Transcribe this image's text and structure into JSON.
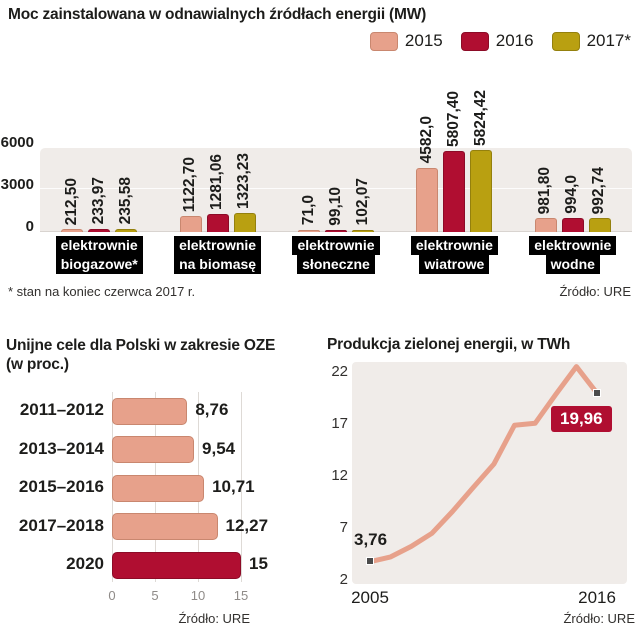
{
  "top_chart": {
    "title": "Moc zainstalowana w odnawialnych źródłach energii (MW)",
    "legend": [
      {
        "label": "2015",
        "color": "#e7a18b",
        "border": "#c9876f"
      },
      {
        "label": "2016",
        "color": "#b00e31",
        "border": "#8c0b27"
      },
      {
        "label": "2017*",
        "color": "#b9a011",
        "border": "#94800d"
      }
    ],
    "footnote": "* stan na koniec czerwca 2017 r.",
    "source": "Źródło: URE"
  },
  "left_chart": {
    "title": "Unijne cele dla Polski w zakresie OZE",
    "subtitle": "(w proc.)",
    "source": "Źródło: URE"
  },
  "right_chart": {
    "title": "Produkcja zielonej energii, w TWh",
    "source": "Źródło: URE"
  },
  "chart_data": [
    {
      "type": "bar",
      "title": "Moc zainstalowana w odnawialnych źródłach energii (MW)",
      "categories": [
        "elektrownie biogazowe*",
        "elektrownie na biomasę",
        "elektrownie słoneczne",
        "elektrownie wiatrowe",
        "elektrownie wodne"
      ],
      "category_lines": [
        [
          "elektrownie",
          "biogazowe*"
        ],
        [
          "elektrownie",
          "na biomasę"
        ],
        [
          "elektrownie",
          "słoneczne"
        ],
        [
          "elektrownie",
          "wiatrowe"
        ],
        [
          "elektrownie",
          "wodne"
        ]
      ],
      "series": [
        {
          "name": "2015",
          "color": "#e7a18b",
          "border": "#c9876f",
          "values": [
            212.5,
            1122.7,
            71.0,
            4582.0,
            981.8
          ],
          "labels": [
            "212,50",
            "1122,70",
            "71,0",
            "4582,0",
            "981,80"
          ]
        },
        {
          "name": "2016",
          "color": "#b00e31",
          "border": "#8c0b27",
          "values": [
            233.97,
            1281.06,
            99.1,
            5807.4,
            994.0
          ],
          "labels": [
            "233,97",
            "1281,06",
            "99,10",
            "5807,40",
            "994,0"
          ]
        },
        {
          "name": "2017*",
          "color": "#b9a011",
          "border": "#94800d",
          "values": [
            235.58,
            1323.23,
            102.07,
            5824.42,
            992.74
          ],
          "labels": [
            "235,58",
            "1323,23",
            "102,07",
            "5824,42",
            "992,74"
          ]
        }
      ],
      "yticks": [
        0,
        3000,
        6000
      ],
      "ylim": [
        0,
        6000
      ],
      "ylabel": "MW"
    },
    {
      "type": "bar",
      "orientation": "horizontal",
      "title": "Unijne cele dla Polski w zakresie OZE (w proc.)",
      "categories": [
        "2011–2012",
        "2013–2014",
        "2015–2016",
        "2017–2018",
        "2020"
      ],
      "values": [
        8.76,
        9.54,
        10.71,
        12.27,
        15
      ],
      "labels": [
        "8,76",
        "9,54",
        "10,71",
        "12,27",
        "15"
      ],
      "bar_colors": [
        "#e7a18b",
        "#e7a18b",
        "#e7a18b",
        "#e7a18b",
        "#b00e31"
      ],
      "bar_borders": [
        "#c9876f",
        "#c9876f",
        "#c9876f",
        "#c9876f",
        "#8c0b27"
      ],
      "xticks": [
        0,
        5,
        10,
        15
      ],
      "xlim": [
        0,
        15
      ],
      "xlabel": "proc."
    },
    {
      "type": "line",
      "title": "Produkcja zielonej energii, w TWh",
      "x": [
        2005,
        2006,
        2007,
        2008,
        2009,
        2010,
        2011,
        2012,
        2013,
        2014,
        2015,
        2016
      ],
      "values": [
        3.76,
        4.22,
        5.23,
        6.49,
        8.6,
        10.89,
        13.14,
        16.88,
        17.07,
        19.84,
        22.52,
        19.96
      ],
      "yticks": [
        2,
        7,
        12,
        17,
        22
      ],
      "ylim": [
        2,
        23
      ],
      "xtick_labels": [
        "2005",
        "2016"
      ],
      "line_color": "#e7a18b",
      "annotations": [
        {
          "x": 2005,
          "value": 3.76,
          "label": "3,76",
          "style": "plain"
        },
        {
          "x": 2016,
          "value": 19.96,
          "label": "19,96",
          "style": "box",
          "box_color": "#b00e31"
        }
      ],
      "ylabel": "TWh"
    }
  ]
}
